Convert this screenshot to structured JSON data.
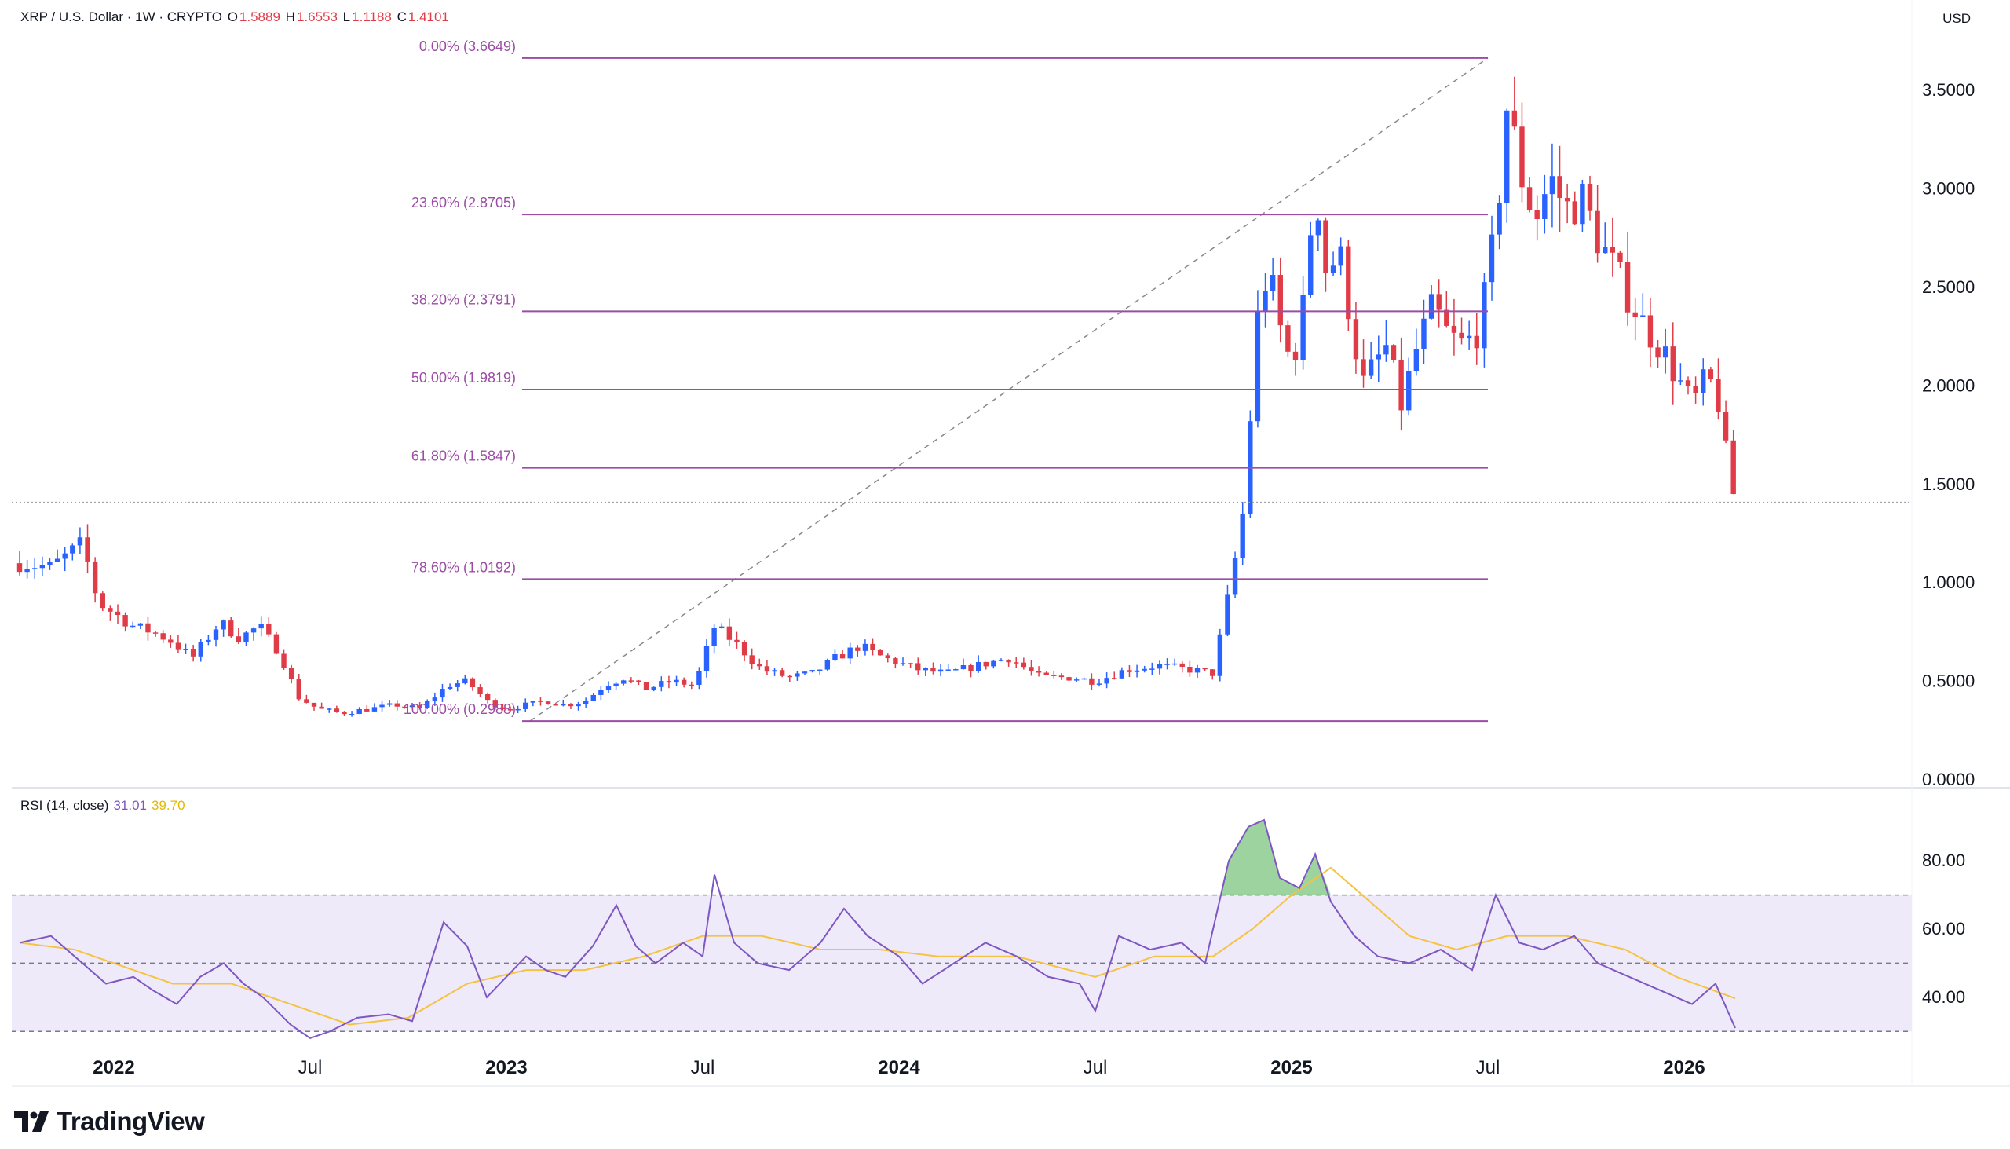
{
  "header": {
    "symbol": "XRP / U.S. Dollar · 1W · CRYPTO",
    "open_label": "O",
    "open": "1.5889",
    "high_label": "H",
    "high": "1.6553",
    "low_label": "L",
    "low": "1.1188",
    "close_label": "C",
    "close": "1.4101"
  },
  "currency": "USD",
  "rsi_header": {
    "label": "RSI (14, close)",
    "rsi": "31.01",
    "ma": "39.70"
  },
  "brand": "TradingView",
  "colors": {
    "up": "#2962ff",
    "down": "#e03c47",
    "fib": "#9c4ca6",
    "rsi": "#7e57c2",
    "rsi_ma": "#f5c242",
    "rsi_band": "#efeafa"
  },
  "chart_data": [
    {
      "type": "candlestick",
      "ylim": [
        0,
        3.8
      ],
      "y_ticks": [
        "0.0000",
        "0.5000",
        "1.0000",
        "1.5000",
        "2.0000",
        "2.5000",
        "3.0000",
        "3.5000"
      ],
      "x_ticks": [
        {
          "label": "2022",
          "t": 2022.0,
          "bold": true
        },
        {
          "label": "Jul",
          "t": 2022.5,
          "bold": false
        },
        {
          "label": "2023",
          "t": 2023.0,
          "bold": true
        },
        {
          "label": "Jul",
          "t": 2023.5,
          "bold": false
        },
        {
          "label": "2024",
          "t": 2024.0,
          "bold": true
        },
        {
          "label": "Jul",
          "t": 2024.5,
          "bold": false
        },
        {
          "label": "2025",
          "t": 2025.0,
          "bold": true
        },
        {
          "label": "Jul",
          "t": 2025.5,
          "bold": false
        },
        {
          "label": "2026",
          "t": 2026.0,
          "bold": true
        }
      ],
      "last_price": 1.4101,
      "price_path": [
        [
          2021.76,
          1.1
        ],
        [
          2021.84,
          1.08
        ],
        [
          2021.92,
          1.2
        ],
        [
          2021.96,
          0.9
        ],
        [
          2022.05,
          0.78
        ],
        [
          2022.1,
          0.75
        ],
        [
          2022.15,
          0.7
        ],
        [
          2022.2,
          0.62
        ],
        [
          2022.27,
          0.8
        ],
        [
          2022.32,
          0.72
        ],
        [
          2022.37,
          0.78
        ],
        [
          2022.42,
          0.65
        ],
        [
          2022.47,
          0.42
        ],
        [
          2022.52,
          0.36
        ],
        [
          2022.58,
          0.34
        ],
        [
          2022.65,
          0.36
        ],
        [
          2022.72,
          0.38
        ],
        [
          2022.78,
          0.36
        ],
        [
          2022.85,
          0.48
        ],
        [
          2022.9,
          0.5
        ],
        [
          2022.95,
          0.4
        ],
        [
          2023.0,
          0.36
        ],
        [
          2023.05,
          0.38
        ],
        [
          2023.1,
          0.4
        ],
        [
          2023.15,
          0.38
        ],
        [
          2023.2,
          0.4
        ],
        [
          2023.25,
          0.48
        ],
        [
          2023.3,
          0.52
        ],
        [
          2023.35,
          0.46
        ],
        [
          2023.42,
          0.5
        ],
        [
          2023.48,
          0.48
        ],
        [
          2023.53,
          0.78
        ],
        [
          2023.58,
          0.7
        ],
        [
          2023.65,
          0.56
        ],
        [
          2023.72,
          0.52
        ],
        [
          2023.78,
          0.54
        ],
        [
          2023.84,
          0.62
        ],
        [
          2023.9,
          0.68
        ],
        [
          2023.96,
          0.62
        ],
        [
          2024.05,
          0.56
        ],
        [
          2024.12,
          0.54
        ],
        [
          2024.2,
          0.58
        ],
        [
          2024.28,
          0.62
        ],
        [
          2024.36,
          0.52
        ],
        [
          2024.44,
          0.52
        ],
        [
          2024.5,
          0.5
        ],
        [
          2024.58,
          0.56
        ],
        [
          2024.66,
          0.58
        ],
        [
          2024.74,
          0.56
        ],
        [
          2024.8,
          0.54
        ],
        [
          2024.85,
          1.05
        ],
        [
          2024.88,
          1.4
        ],
        [
          2024.91,
          2.3
        ],
        [
          2024.94,
          2.6
        ],
        [
          2024.97,
          2.3
        ],
        [
          2025.0,
          2.1
        ],
        [
          2025.03,
          2.4
        ],
        [
          2025.06,
          3.05
        ],
        [
          2025.09,
          2.55
        ],
        [
          2025.12,
          2.7
        ],
        [
          2025.15,
          2.35
        ],
        [
          2025.18,
          2.0
        ],
        [
          2025.21,
          2.1
        ],
        [
          2025.24,
          2.2
        ],
        [
          2025.28,
          1.9
        ],
        [
          2025.32,
          2.2
        ],
        [
          2025.36,
          2.4
        ],
        [
          2025.4,
          2.25
        ],
        [
          2025.44,
          2.2
        ],
        [
          2025.48,
          2.3
        ],
        [
          2025.52,
          2.8
        ],
        [
          2025.55,
          3.45
        ],
        [
          2025.58,
          3.1
        ],
        [
          2025.62,
          2.85
        ],
        [
          2025.66,
          3.05
        ],
        [
          2025.7,
          2.9
        ],
        [
          2025.74,
          2.95
        ],
        [
          2025.78,
          2.75
        ],
        [
          2025.82,
          2.6
        ],
        [
          2025.86,
          2.45
        ],
        [
          2025.9,
          2.3
        ],
        [
          2025.94,
          2.2
        ],
        [
          2025.98,
          2.05
        ],
        [
          2026.02,
          1.9
        ],
        [
          2026.06,
          2.05
        ],
        [
          2026.09,
          1.9
        ],
        [
          2026.11,
          1.6
        ],
        [
          2026.13,
          1.41
        ]
      ],
      "fibonacci": [
        {
          "label": "0.00% (3.6649)",
          "price": 3.6649
        },
        {
          "label": "23.60% (2.8705)",
          "price": 2.8705
        },
        {
          "label": "38.20% (2.3791)",
          "price": 2.3791
        },
        {
          "label": "50.00% (1.9819)",
          "price": 1.9819
        },
        {
          "label": "61.80% (1.5847)",
          "price": 1.5847
        },
        {
          "label": "78.60% (1.0192)",
          "price": 1.0192
        },
        {
          "label": "100.00% (0.2988)",
          "price": 0.2988
        }
      ],
      "fib_t_range": [
        2023.06,
        2025.5
      ]
    },
    {
      "type": "line",
      "ylim": [
        22,
        98
      ],
      "y_ticks": [
        "40.00",
        "60.00",
        "80.00"
      ],
      "bands": [
        30,
        50,
        70
      ],
      "rsi": [
        [
          2021.76,
          56
        ],
        [
          2021.84,
          58
        ],
        [
          2021.92,
          50
        ],
        [
          2021.98,
          44
        ],
        [
          2022.05,
          46
        ],
        [
          2022.1,
          42
        ],
        [
          2022.16,
          38
        ],
        [
          2022.22,
          46
        ],
        [
          2022.28,
          50
        ],
        [
          2022.33,
          44
        ],
        [
          2022.38,
          40
        ],
        [
          2022.45,
          32
        ],
        [
          2022.5,
          28
        ],
        [
          2022.55,
          30
        ],
        [
          2022.62,
          34
        ],
        [
          2022.7,
          35
        ],
        [
          2022.76,
          33
        ],
        [
          2022.84,
          62
        ],
        [
          2022.9,
          55
        ],
        [
          2022.95,
          40
        ],
        [
          2023.0,
          46
        ],
        [
          2023.05,
          52
        ],
        [
          2023.1,
          48
        ],
        [
          2023.15,
          46
        ],
        [
          2023.22,
          55
        ],
        [
          2023.28,
          67
        ],
        [
          2023.33,
          55
        ],
        [
          2023.38,
          50
        ],
        [
          2023.45,
          56
        ],
        [
          2023.5,
          52
        ],
        [
          2023.53,
          76
        ],
        [
          2023.58,
          56
        ],
        [
          2023.64,
          50
        ],
        [
          2023.72,
          48
        ],
        [
          2023.8,
          56
        ],
        [
          2023.86,
          66
        ],
        [
          2023.92,
          58
        ],
        [
          2024.0,
          52
        ],
        [
          2024.06,
          44
        ],
        [
          2024.14,
          50
        ],
        [
          2024.22,
          56
        ],
        [
          2024.3,
          52
        ],
        [
          2024.38,
          46
        ],
        [
          2024.46,
          44
        ],
        [
          2024.5,
          36
        ],
        [
          2024.56,
          58
        ],
        [
          2024.64,
          54
        ],
        [
          2024.72,
          56
        ],
        [
          2024.78,
          50
        ],
        [
          2024.84,
          80
        ],
        [
          2024.89,
          90
        ],
        [
          2024.93,
          92
        ],
        [
          2024.97,
          75
        ],
        [
          2025.02,
          72
        ],
        [
          2025.06,
          82
        ],
        [
          2025.1,
          68
        ],
        [
          2025.16,
          58
        ],
        [
          2025.22,
          52
        ],
        [
          2025.3,
          50
        ],
        [
          2025.38,
          54
        ],
        [
          2025.46,
          48
        ],
        [
          2025.52,
          70
        ],
        [
          2025.58,
          56
        ],
        [
          2025.64,
          54
        ],
        [
          2025.72,
          58
        ],
        [
          2025.78,
          50
        ],
        [
          2025.86,
          46
        ],
        [
          2025.94,
          42
        ],
        [
          2026.02,
          38
        ],
        [
          2026.08,
          44
        ],
        [
          2026.13,
          31
        ]
      ],
      "rsi_ma": [
        [
          2021.76,
          56
        ],
        [
          2021.9,
          54
        ],
        [
          2022.0,
          50
        ],
        [
          2022.15,
          44
        ],
        [
          2022.3,
          44
        ],
        [
          2022.45,
          38
        ],
        [
          2022.6,
          32
        ],
        [
          2022.75,
          34
        ],
        [
          2022.9,
          44
        ],
        [
          2023.05,
          48
        ],
        [
          2023.2,
          48
        ],
        [
          2023.35,
          52
        ],
        [
          2023.5,
          58
        ],
        [
          2023.65,
          58
        ],
        [
          2023.8,
          54
        ],
        [
          2023.95,
          54
        ],
        [
          2024.1,
          52
        ],
        [
          2024.3,
          52
        ],
        [
          2024.5,
          46
        ],
        [
          2024.65,
          52
        ],
        [
          2024.8,
          52
        ],
        [
          2024.9,
          60
        ],
        [
          2025.0,
          70
        ],
        [
          2025.1,
          78
        ],
        [
          2025.2,
          68
        ],
        [
          2025.3,
          58
        ],
        [
          2025.42,
          54
        ],
        [
          2025.55,
          58
        ],
        [
          2025.7,
          58
        ],
        [
          2025.85,
          54
        ],
        [
          2025.98,
          46
        ],
        [
          2026.13,
          39.7
        ]
      ]
    }
  ]
}
